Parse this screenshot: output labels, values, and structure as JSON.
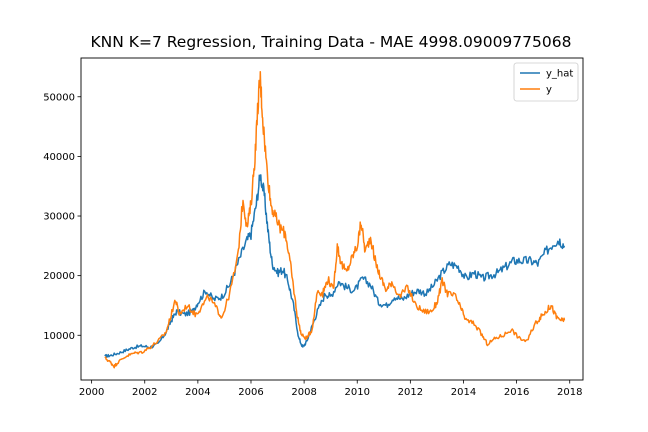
{
  "chart_data": {
    "type": "line",
    "title": "KNN K=7 Regression, Training Data - MAE 4998.09009775068",
    "xlabel": "",
    "ylabel": "",
    "xlim": [
      1999.6,
      2018.5
    ],
    "ylim": [
      2500,
      56500
    ],
    "x_ticks": [
      2000,
      2002,
      2004,
      2006,
      2008,
      2010,
      2012,
      2014,
      2016,
      2018
    ],
    "y_ticks": [
      10000,
      20000,
      30000,
      40000,
      50000
    ],
    "grid": false,
    "legend": {
      "placement": "top-right"
    },
    "series": [
      {
        "name": "y_hat",
        "color": "#1f77b4",
        "points": [
          [
            2000.5,
            6500
          ],
          [
            2000.7,
            6600
          ],
          [
            2001.0,
            7000
          ],
          [
            2001.3,
            7500
          ],
          [
            2001.6,
            8000
          ],
          [
            2001.9,
            8200
          ],
          [
            2002.2,
            8000
          ],
          [
            2002.5,
            8500
          ],
          [
            2002.8,
            10500
          ],
          [
            2003.0,
            12500
          ],
          [
            2003.2,
            14000
          ],
          [
            2003.5,
            13500
          ],
          [
            2003.8,
            14000
          ],
          [
            2004.0,
            15500
          ],
          [
            2004.3,
            17500
          ],
          [
            2004.6,
            16000
          ],
          [
            2004.9,
            16500
          ],
          [
            2005.2,
            18500
          ],
          [
            2005.5,
            22000
          ],
          [
            2005.8,
            25500
          ],
          [
            2006.0,
            27000
          ],
          [
            2006.2,
            32000
          ],
          [
            2006.35,
            37000
          ],
          [
            2006.5,
            33500
          ],
          [
            2006.65,
            27000
          ],
          [
            2006.8,
            22000
          ],
          [
            2007.0,
            20500
          ],
          [
            2007.2,
            21000
          ],
          [
            2007.4,
            19000
          ],
          [
            2007.6,
            15000
          ],
          [
            2007.8,
            9500
          ],
          [
            2007.95,
            8000
          ],
          [
            2008.1,
            9000
          ],
          [
            2008.3,
            11500
          ],
          [
            2008.5,
            14000
          ],
          [
            2008.8,
            17000
          ],
          [
            2009.0,
            16500
          ],
          [
            2009.3,
            19000
          ],
          [
            2009.6,
            18000
          ],
          [
            2009.9,
            17500
          ],
          [
            2010.2,
            19500
          ],
          [
            2010.5,
            18500
          ],
          [
            2010.8,
            15500
          ],
          [
            2011.1,
            15000
          ],
          [
            2011.4,
            16500
          ],
          [
            2011.7,
            16000
          ],
          [
            2012.0,
            17000
          ],
          [
            2012.3,
            17500
          ],
          [
            2012.6,
            17000
          ],
          [
            2012.9,
            18500
          ],
          [
            2013.2,
            20500
          ],
          [
            2013.5,
            22000
          ],
          [
            2013.8,
            21500
          ],
          [
            2014.1,
            19500
          ],
          [
            2014.4,
            20500
          ],
          [
            2014.7,
            19500
          ],
          [
            2015.0,
            20000
          ],
          [
            2015.3,
            20500
          ],
          [
            2015.6,
            21500
          ],
          [
            2015.9,
            22500
          ],
          [
            2016.2,
            22500
          ],
          [
            2016.5,
            22500
          ],
          [
            2016.8,
            22000
          ],
          [
            2017.1,
            24000
          ],
          [
            2017.4,
            25500
          ],
          [
            2017.6,
            26000
          ],
          [
            2017.8,
            25000
          ]
        ]
      },
      {
        "name": "y",
        "color": "#ff7f0e",
        "points": [
          [
            2000.5,
            6200
          ],
          [
            2000.7,
            5500
          ],
          [
            2000.85,
            4800
          ],
          [
            2001.0,
            5500
          ],
          [
            2001.3,
            6500
          ],
          [
            2001.6,
            7000
          ],
          [
            2001.9,
            7200
          ],
          [
            2002.2,
            8000
          ],
          [
            2002.5,
            9000
          ],
          [
            2002.8,
            10500
          ],
          [
            2003.0,
            13500
          ],
          [
            2003.15,
            16000
          ],
          [
            2003.3,
            13500
          ],
          [
            2003.6,
            15000
          ],
          [
            2003.9,
            13500
          ],
          [
            2004.1,
            14500
          ],
          [
            2004.4,
            16500
          ],
          [
            2004.7,
            14500
          ],
          [
            2004.9,
            13000
          ],
          [
            2005.2,
            17000
          ],
          [
            2005.5,
            23000
          ],
          [
            2005.7,
            33000
          ],
          [
            2005.85,
            28000
          ],
          [
            2006.0,
            32000
          ],
          [
            2006.15,
            40000
          ],
          [
            2006.28,
            50000
          ],
          [
            2006.35,
            53000
          ],
          [
            2006.45,
            46000
          ],
          [
            2006.6,
            38000
          ],
          [
            2006.75,
            32000
          ],
          [
            2006.9,
            30000
          ],
          [
            2007.1,
            28000
          ],
          [
            2007.3,
            27000
          ],
          [
            2007.45,
            23000
          ],
          [
            2007.6,
            18000
          ],
          [
            2007.75,
            13000
          ],
          [
            2007.9,
            10000
          ],
          [
            2008.1,
            9500
          ],
          [
            2008.3,
            11000
          ],
          [
            2008.5,
            17500
          ],
          [
            2008.7,
            17000
          ],
          [
            2008.9,
            19500
          ],
          [
            2009.1,
            17500
          ],
          [
            2009.25,
            25000
          ],
          [
            2009.4,
            22000
          ],
          [
            2009.6,
            20500
          ],
          [
            2009.8,
            23000
          ],
          [
            2010.0,
            25000
          ],
          [
            2010.15,
            29000
          ],
          [
            2010.3,
            24000
          ],
          [
            2010.5,
            26500
          ],
          [
            2010.7,
            22000
          ],
          [
            2010.9,
            19500
          ],
          [
            2011.1,
            17500
          ],
          [
            2011.3,
            19000
          ],
          [
            2011.6,
            16500
          ],
          [
            2011.9,
            18000
          ],
          [
            2012.2,
            15000
          ],
          [
            2012.5,
            14000
          ],
          [
            2012.8,
            14000
          ],
          [
            2013.0,
            15500
          ],
          [
            2013.2,
            19000
          ],
          [
            2013.4,
            17000
          ],
          [
            2013.7,
            16500
          ],
          [
            2013.9,
            14500
          ],
          [
            2014.1,
            12500
          ],
          [
            2014.4,
            12000
          ],
          [
            2014.7,
            10000
          ],
          [
            2014.9,
            8500
          ],
          [
            2015.2,
            9500
          ],
          [
            2015.5,
            10000
          ],
          [
            2015.8,
            11000
          ],
          [
            2016.1,
            9500
          ],
          [
            2016.4,
            9000
          ],
          [
            2016.7,
            12000
          ],
          [
            2016.9,
            13000
          ],
          [
            2017.1,
            14000
          ],
          [
            2017.3,
            15000
          ],
          [
            2017.5,
            13000
          ],
          [
            2017.7,
            12500
          ],
          [
            2017.8,
            12500
          ]
        ]
      }
    ]
  }
}
